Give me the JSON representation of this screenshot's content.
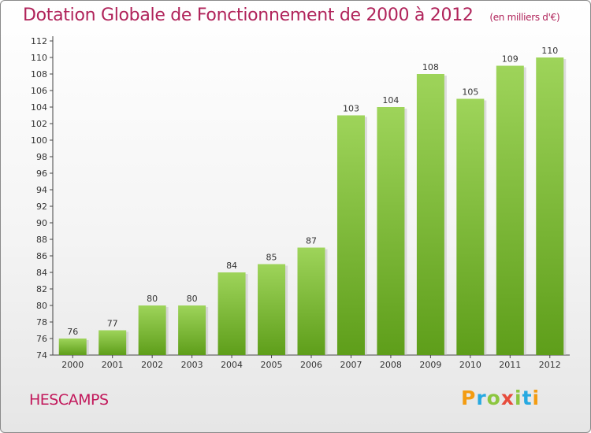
{
  "header": {
    "title": "Dotation Globale de Fonctionnement de 2000 à 2012",
    "unit": "(en milliers d'€)"
  },
  "footer": {
    "commune": "HESCAMPS",
    "brand_letters": [
      "P",
      "r",
      "o",
      "x",
      "i",
      "t",
      "i"
    ],
    "brand_colors": [
      "#f39c12",
      "#27a9e1",
      "#8cc63f",
      "#e74c3c",
      "#8cc63f",
      "#27a9e1",
      "#f39c12"
    ]
  },
  "chart_data": {
    "type": "bar",
    "categories": [
      "2000",
      "2001",
      "2002",
      "2003",
      "2004",
      "2005",
      "2006",
      "2007",
      "2008",
      "2009",
      "2010",
      "2011",
      "2012"
    ],
    "values": [
      76,
      77,
      80,
      80,
      84,
      85,
      87,
      103,
      104,
      108,
      105,
      109,
      110
    ],
    "ylim": [
      74,
      112
    ],
    "yticks": [
      74,
      76,
      78,
      80,
      82,
      84,
      86,
      88,
      90,
      92,
      94,
      96,
      98,
      100,
      102,
      104,
      106,
      108,
      110,
      112
    ],
    "grid": false,
    "bar_color_top": "#9ed45a",
    "bar_color_bottom": "#5e9e1a",
    "data_labels": true
  }
}
